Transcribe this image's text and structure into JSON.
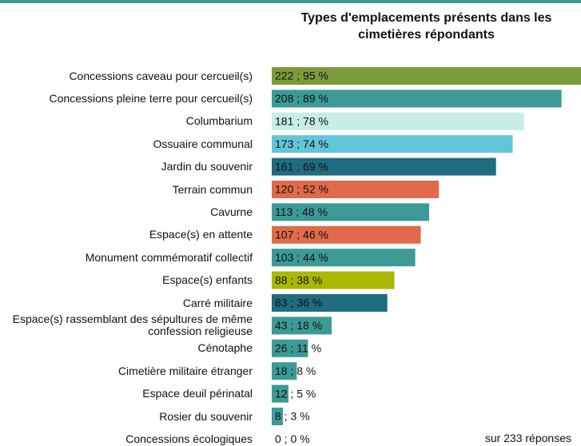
{
  "chart_data": {
    "type": "barh",
    "title": "Types d'emplacements présents dans les cimetières répondants",
    "note": "sur 233 réponses",
    "categories": [
      "Concessions caveau pour cercueil(s)",
      "Concessions pleine terre pour cercueil(s)",
      "Columbarium",
      "Ossuaire communal",
      "Jardin du souvenir",
      "Terrain commun",
      "Cavurne",
      "Espace(s) en attente",
      "Monument commémoratif collectif",
      "Espace(s) enfants",
      "Carré militaire",
      "Espace(s) rassemblant des sépultures de même confession religieuse",
      "Cénotaphe",
      "Cimetière militaire étranger",
      "Espace deuil périnatal",
      "Rosier du souvenir",
      "Concessions écologiques"
    ],
    "values": [
      222,
      208,
      181,
      173,
      161,
      120,
      113,
      107,
      103,
      88,
      83,
      43,
      26,
      18,
      12,
      8,
      0
    ],
    "value_labels": [
      "222 ; 95 %",
      "208 ; 89 %",
      "181 ; 78 %",
      "173 ; 74 %",
      "161 ; 69 %",
      "120 ; 52 %",
      "113 ; 48 %",
      "107 ; 46 %",
      "103 ; 44 %",
      "88 ; 38 %",
      "83 ; 36 %",
      "43 ; 18 %",
      "26 ; 11 %",
      "18 ; 8 %",
      "12 ; 5 %",
      "8 ; 3 %",
      "0 ; 0 %"
    ],
    "colors": [
      "#7b9c3a",
      "#3b9a95",
      "#c6eee4",
      "#62c6d9",
      "#1f6c80",
      "#e06a4a",
      "#3b9a95",
      "#e06a4a",
      "#3b9a95",
      "#a9b800",
      "#1f6c80",
      "#3b9a95",
      "#3b9a95",
      "#3b9a95",
      "#3b9a95",
      "#3b9a95",
      "#3b9a95"
    ]
  }
}
